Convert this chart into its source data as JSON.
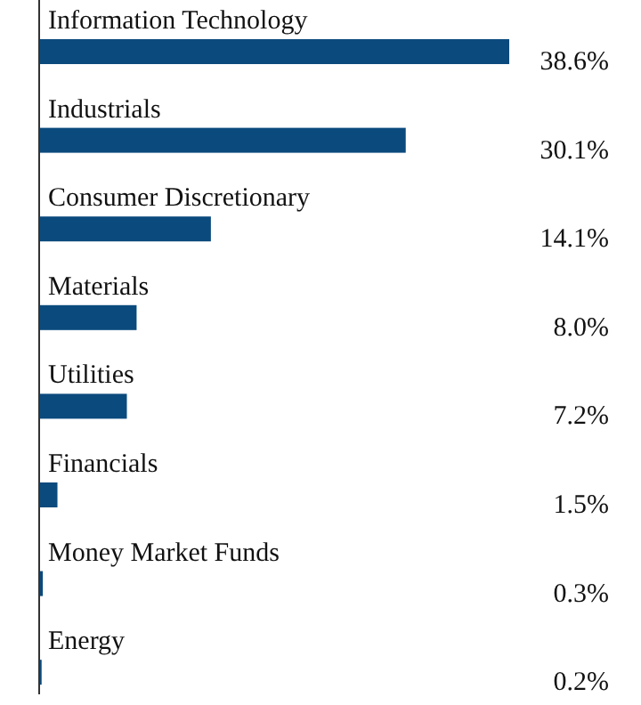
{
  "chart_data": {
    "type": "bar",
    "orientation": "horizontal",
    "categories": [
      "Information Technology",
      "Industrials",
      "Consumer Discretionary",
      "Materials",
      "Utilities",
      "Financials",
      "Money Market Funds",
      "Energy"
    ],
    "values": [
      38.6,
      30.1,
      14.1,
      8.0,
      7.2,
      1.5,
      0.3,
      0.2
    ],
    "value_labels": [
      "38.6%",
      "30.1%",
      "14.1%",
      "8.0%",
      "7.2%",
      "1.5%",
      "0.3%",
      "0.2%"
    ],
    "color": "#0b4a7d"
  }
}
